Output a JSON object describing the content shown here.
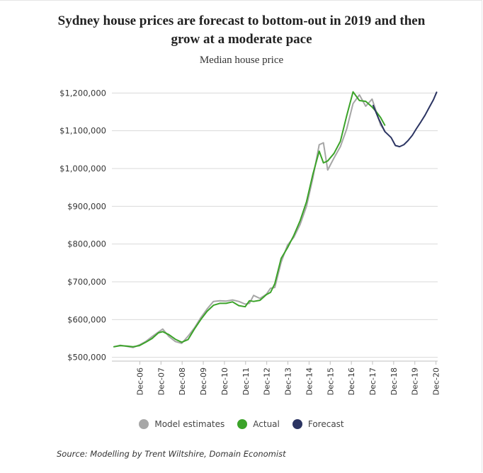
{
  "title_line1": "Sydney house prices are forecast to bottom-out in 2019 and then",
  "title_line2": "grow at a moderate pace",
  "subtitle": "Median house price",
  "source": "Source: Modelling by Trent Wiltshire, Domain Economist",
  "chart_data": {
    "type": "line",
    "y_ticks": [
      500000,
      600000,
      700000,
      800000,
      900000,
      1000000,
      1100000,
      1200000
    ],
    "y_tick_labels": [
      "$500,000",
      "$600,000",
      "$700,000",
      "$800,000",
      "$900,000",
      "$1,000,000",
      "$1,100,000",
      "$1,200,000"
    ],
    "ylim": [
      490000,
      1210000
    ],
    "xlim": [
      2005.6,
      2021.0
    ],
    "x_ticks": [
      2006.92,
      2007.92,
      2008.92,
      2009.92,
      2010.92,
      2011.92,
      2012.92,
      2013.92,
      2014.92,
      2015.92,
      2016.92,
      2017.92,
      2018.92,
      2019.92,
      2020.92
    ],
    "x_tick_labels": [
      "Dec-06",
      "Dec-07",
      "Dec-08",
      "Dec-09",
      "Dec-10",
      "Dec-11",
      "Dec-12",
      "Dec-13",
      "Dec-14",
      "Dec-15",
      "Dec-16",
      "Dec-17",
      "Dec-18",
      "Dec-19",
      "Dec-20"
    ],
    "grid": true,
    "legend_position": "bottom",
    "series": [
      {
        "name": "Model estimates",
        "color": "#a6a6a6",
        "points": [
          [
            2005.7,
            528000
          ],
          [
            2006.0,
            532000
          ],
          [
            2006.3,
            529000
          ],
          [
            2006.6,
            526000
          ],
          [
            2006.9,
            533000
          ],
          [
            2007.2,
            542000
          ],
          [
            2007.5,
            555000
          ],
          [
            2007.8,
            567000
          ],
          [
            2008.0,
            575000
          ],
          [
            2008.3,
            555000
          ],
          [
            2008.6,
            542000
          ],
          [
            2008.9,
            537000
          ],
          [
            2009.2,
            556000
          ],
          [
            2009.5,
            578000
          ],
          [
            2009.8,
            605000
          ],
          [
            2010.1,
            628000
          ],
          [
            2010.4,
            648000
          ],
          [
            2010.7,
            650000
          ],
          [
            2011.0,
            649000
          ],
          [
            2011.3,
            652000
          ],
          [
            2011.6,
            648000
          ],
          [
            2011.9,
            641000
          ],
          [
            2012.1,
            643000
          ],
          [
            2012.3,
            664000
          ],
          [
            2012.6,
            656000
          ],
          [
            2012.9,
            667000
          ],
          [
            2013.1,
            683000
          ],
          [
            2013.3,
            685000
          ],
          [
            2013.6,
            752000
          ],
          [
            2013.9,
            797000
          ],
          [
            2014.2,
            818000
          ],
          [
            2014.5,
            852000
          ],
          [
            2014.8,
            900000
          ],
          [
            2015.1,
            975000
          ],
          [
            2015.4,
            1063000
          ],
          [
            2015.6,
            1068000
          ],
          [
            2015.8,
            996000
          ],
          [
            2016.1,
            1028000
          ],
          [
            2016.4,
            1058000
          ],
          [
            2016.7,
            1105000
          ],
          [
            2017.0,
            1172000
          ],
          [
            2017.3,
            1195000
          ],
          [
            2017.6,
            1165000
          ],
          [
            2017.9,
            1184000
          ],
          [
            2018.1,
            1150000
          ],
          [
            2018.3,
            1115000
          ],
          [
            2018.5,
            1100000
          ]
        ]
      },
      {
        "name": "Actual",
        "color": "#3ba329",
        "points": [
          [
            2005.7,
            528000
          ],
          [
            2006.0,
            531000
          ],
          [
            2006.3,
            530000
          ],
          [
            2006.6,
            528000
          ],
          [
            2006.9,
            531000
          ],
          [
            2007.2,
            540000
          ],
          [
            2007.5,
            550000
          ],
          [
            2007.8,
            565000
          ],
          [
            2008.0,
            568000
          ],
          [
            2008.3,
            560000
          ],
          [
            2008.6,
            548000
          ],
          [
            2008.9,
            540000
          ],
          [
            2009.2,
            547000
          ],
          [
            2009.5,
            575000
          ],
          [
            2009.8,
            600000
          ],
          [
            2010.1,
            622000
          ],
          [
            2010.4,
            638000
          ],
          [
            2010.7,
            643000
          ],
          [
            2011.0,
            643000
          ],
          [
            2011.3,
            647000
          ],
          [
            2011.6,
            637000
          ],
          [
            2011.9,
            634000
          ],
          [
            2012.1,
            650000
          ],
          [
            2012.3,
            648000
          ],
          [
            2012.6,
            651000
          ],
          [
            2012.9,
            666000
          ],
          [
            2013.1,
            672000
          ],
          [
            2013.3,
            695000
          ],
          [
            2013.6,
            762000
          ],
          [
            2013.9,
            790000
          ],
          [
            2014.2,
            823000
          ],
          [
            2014.5,
            862000
          ],
          [
            2014.8,
            912000
          ],
          [
            2015.1,
            985000
          ],
          [
            2015.4,
            1046000
          ],
          [
            2015.6,
            1015000
          ],
          [
            2015.8,
            1020000
          ],
          [
            2016.1,
            1040000
          ],
          [
            2016.4,
            1072000
          ],
          [
            2016.7,
            1140000
          ],
          [
            2017.0,
            1203000
          ],
          [
            2017.3,
            1180000
          ],
          [
            2017.6,
            1178000
          ],
          [
            2017.9,
            1163000
          ],
          [
            2018.1,
            1150000
          ],
          [
            2018.3,
            1135000
          ],
          [
            2018.5,
            1115000
          ]
        ]
      },
      {
        "name": "Forecast",
        "color": "#2b3462",
        "points": [
          [
            2017.95,
            1167000
          ],
          [
            2018.2,
            1133000
          ],
          [
            2018.5,
            1098000
          ],
          [
            2018.8,
            1082000
          ],
          [
            2019.0,
            1061000
          ],
          [
            2019.2,
            1058000
          ],
          [
            2019.4,
            1063000
          ],
          [
            2019.6,
            1074000
          ],
          [
            2019.8,
            1088000
          ],
          [
            2020.0,
            1106000
          ],
          [
            2020.2,
            1123000
          ],
          [
            2020.4,
            1141000
          ],
          [
            2020.6,
            1162000
          ],
          [
            2020.8,
            1182000
          ],
          [
            2020.95,
            1202000
          ]
        ]
      }
    ]
  }
}
